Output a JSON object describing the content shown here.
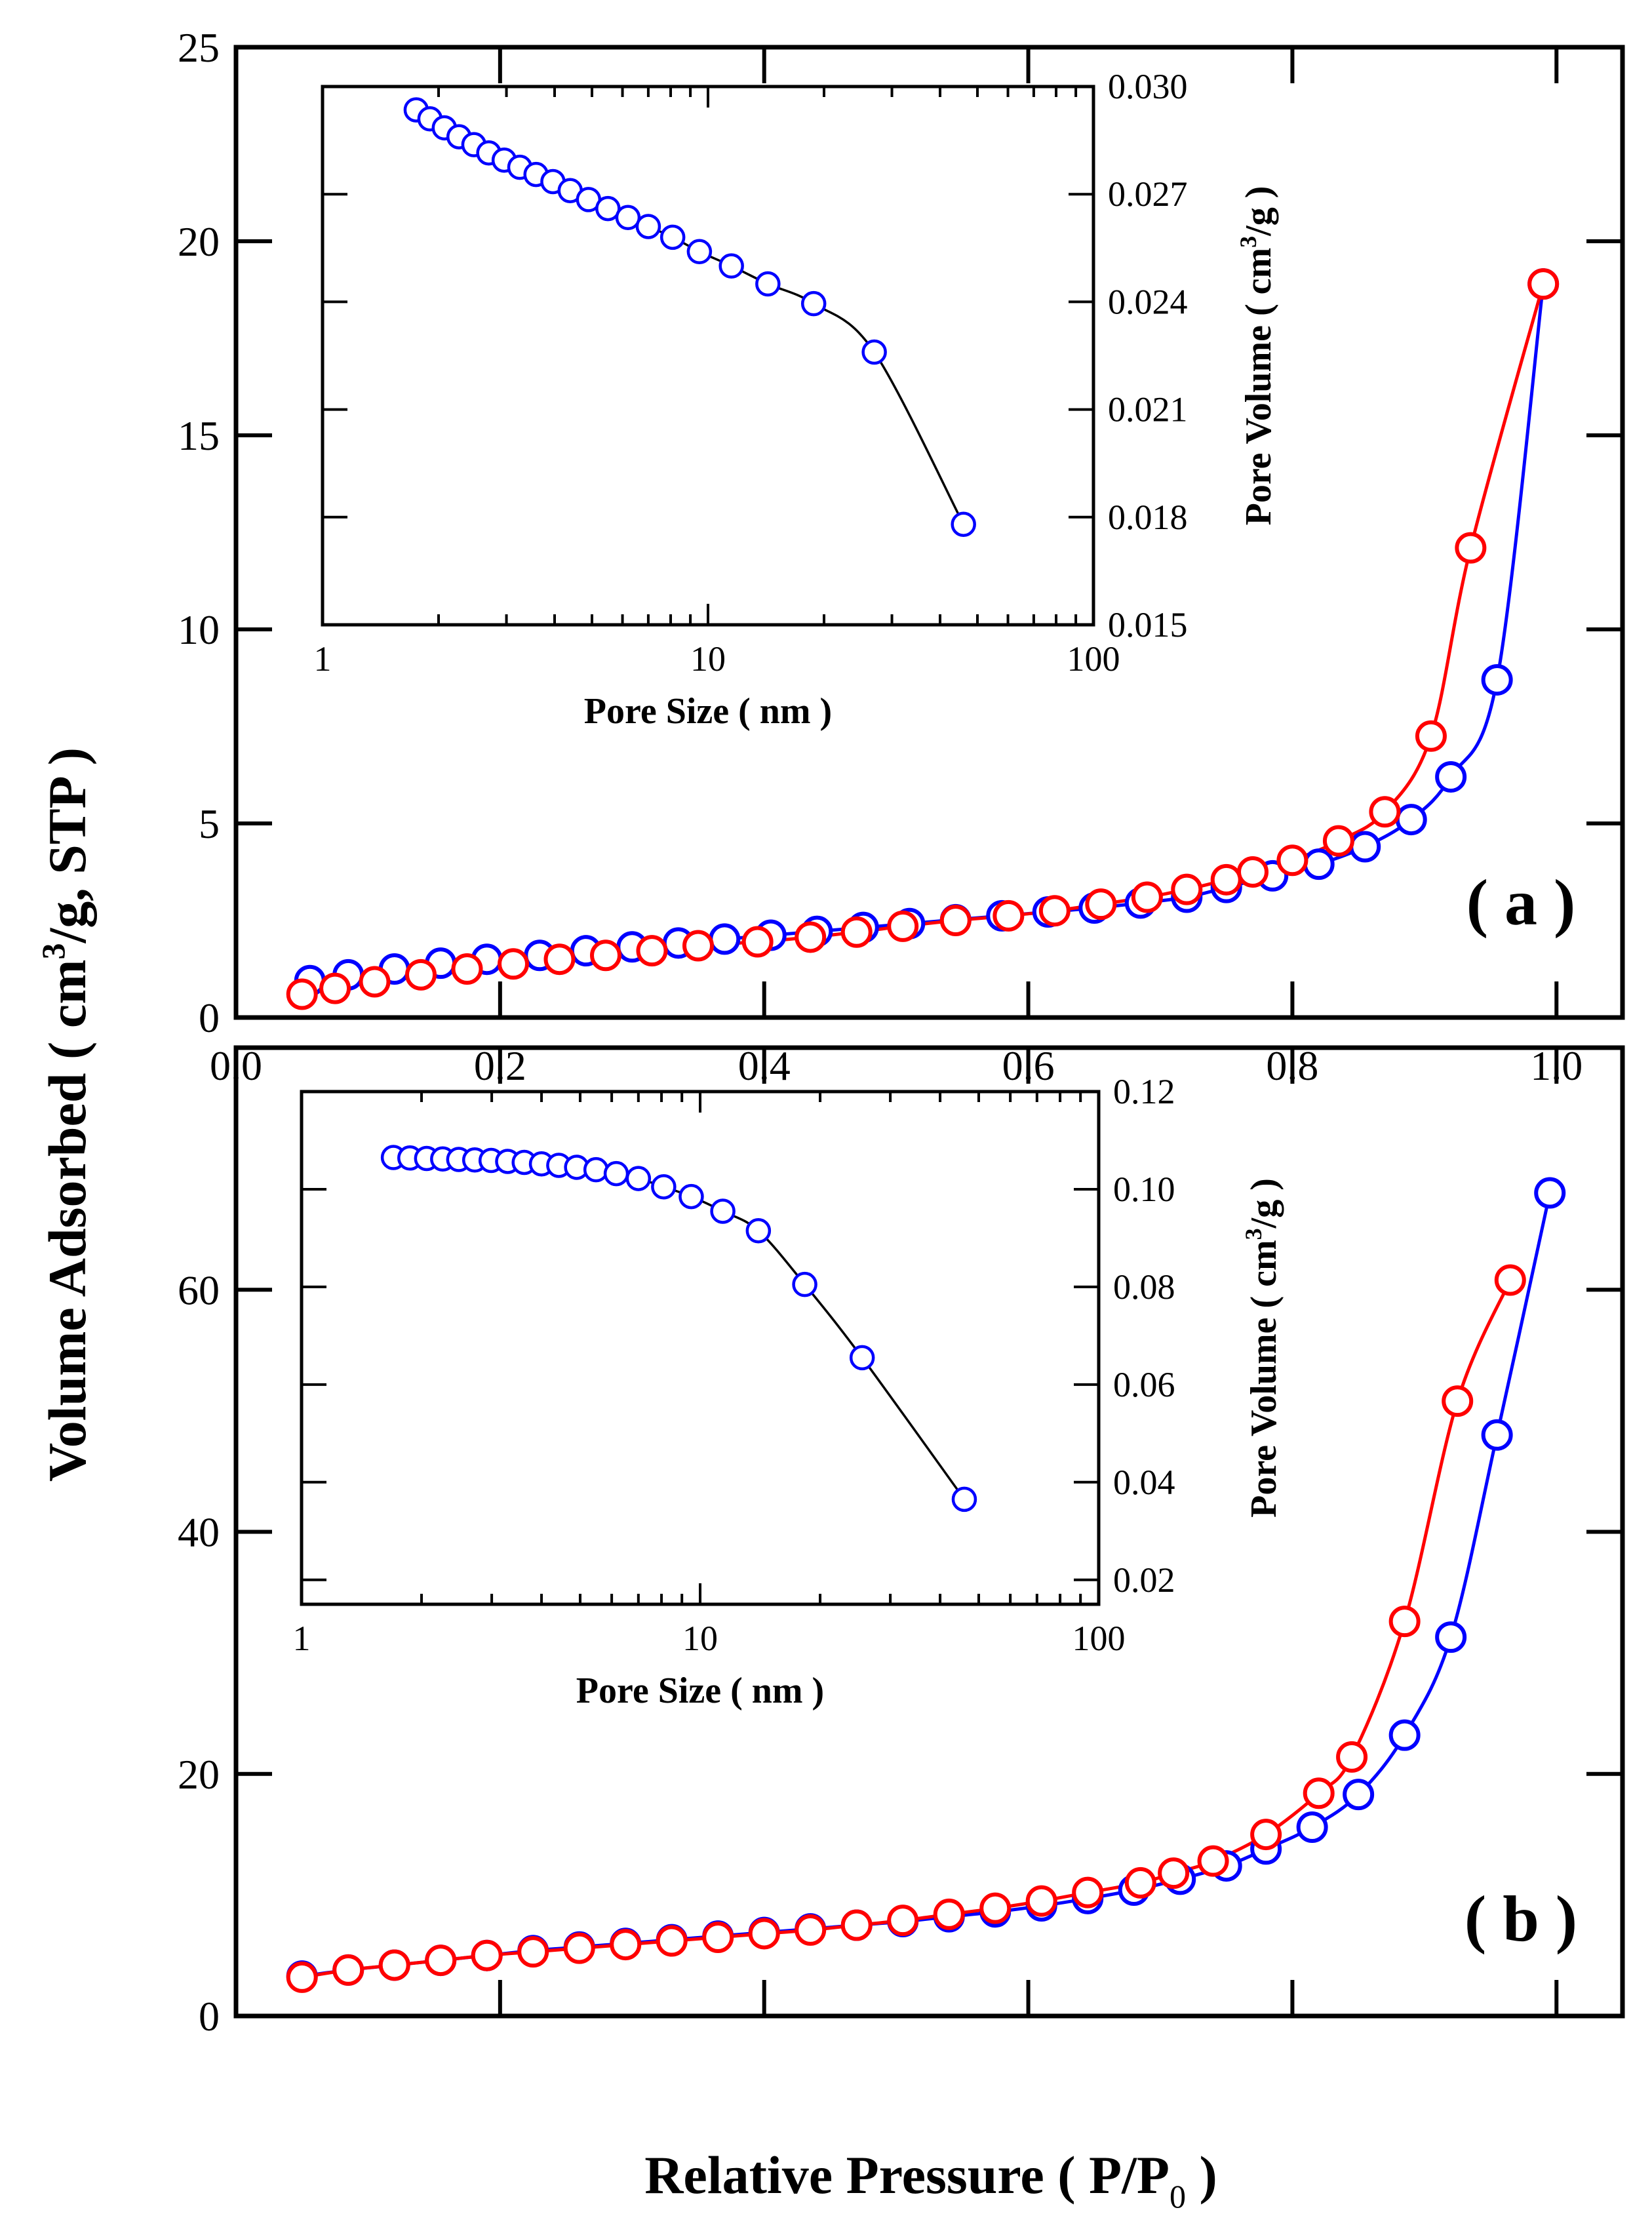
{
  "chart_data": [
    {
      "id": "a",
      "type": "scatter",
      "panel_label": "( a )",
      "xlabel_main": "Relative Pressure ( P/P",
      "xlabel_sub": "0",
      "xlabel_close": " )",
      "ylabel_pre": "Volume Adsorbed ( cm",
      "ylabel_sup": "3",
      "ylabel_post": "/g, STP )",
      "xlim": [
        0.0,
        1.05
      ],
      "ylim": [
        0,
        25
      ],
      "xticks": [
        0.0,
        0.2,
        0.4,
        0.6,
        0.8,
        1.0
      ],
      "xtick_labels": [
        "0.0",
        "0.2",
        "0.4",
        "0.6",
        "0.8",
        "1.0"
      ],
      "yticks": [
        0,
        5,
        10,
        15,
        20,
        25
      ],
      "ytick_labels": [
        "0",
        "5",
        "10",
        "15",
        "20",
        "25"
      ],
      "series": [
        {
          "name": "adsorption",
          "color": "#0000ff",
          "x": [
            0.056,
            0.085,
            0.12,
            0.155,
            0.19,
            0.23,
            0.265,
            0.3,
            0.335,
            0.37,
            0.405,
            0.44,
            0.475,
            0.51,
            0.545,
            0.58,
            0.615,
            0.65,
            0.685,
            0.72,
            0.75,
            0.785,
            0.82,
            0.855,
            0.89,
            0.92,
            0.955,
            0.99
          ],
          "y": [
            0.95,
            1.1,
            1.25,
            1.4,
            1.5,
            1.6,
            1.72,
            1.82,
            1.92,
            2.02,
            2.12,
            2.22,
            2.32,
            2.42,
            2.52,
            2.62,
            2.72,
            2.82,
            2.95,
            3.1,
            3.35,
            3.65,
            3.95,
            4.4,
            5.1,
            6.2,
            8.7,
            18.9
          ]
        },
        {
          "name": "desorption",
          "color": "#ff0000",
          "x": [
            0.05,
            0.075,
            0.105,
            0.14,
            0.175,
            0.21,
            0.245,
            0.28,
            0.315,
            0.35,
            0.395,
            0.435,
            0.47,
            0.505,
            0.545,
            0.585,
            0.62,
            0.655,
            0.69,
            0.72,
            0.75,
            0.77,
            0.8,
            0.835,
            0.87,
            0.905,
            0.935,
            0.99
          ],
          "y": [
            0.6,
            0.75,
            0.92,
            1.1,
            1.25,
            1.38,
            1.5,
            1.6,
            1.72,
            1.85,
            1.95,
            2.07,
            2.2,
            2.35,
            2.5,
            2.62,
            2.75,
            2.92,
            3.1,
            3.3,
            3.55,
            3.75,
            4.05,
            4.55,
            5.3,
            7.25,
            12.1,
            18.9
          ]
        }
      ],
      "inset": {
        "type": "scatter",
        "xscale": "log",
        "xlim": [
          1,
          100
        ],
        "ylim": [
          0.015,
          0.03
        ],
        "yaxis_side": "right",
        "xticks": [
          1,
          10,
          100
        ],
        "xtick_labels": [
          "1",
          "10",
          "100"
        ],
        "yticks": [
          0.015,
          0.018,
          0.021,
          0.024,
          0.027,
          0.03
        ],
        "ytick_labels": [
          "0.015",
          "0.018",
          "0.021",
          "0.024",
          "0.027",
          "0.030"
        ],
        "xlabel": "Pore Size ( nm )",
        "ylabel_pre": "Pore Volume ( cm",
        "ylabel_sup": "3",
        "ylabel_post": "/g )",
        "series": [
          {
            "name": "pore-volume",
            "color": "#0000ff",
            "x": [
              1.75,
              1.9,
              2.07,
              2.26,
              2.47,
              2.7,
              2.96,
              3.25,
              3.58,
              3.96,
              4.39,
              4.9,
              5.5,
              6.2,
              7.0,
              8.1,
              9.5,
              11.5,
              14.3,
              18.8,
              27.0,
              46.0
            ],
            "y": [
              0.02935,
              0.0291,
              0.02885,
              0.0286,
              0.02838,
              0.02815,
              0.02795,
              0.02775,
              0.02755,
              0.02735,
              0.0271,
              0.02685,
              0.0266,
              0.02635,
              0.0261,
              0.0258,
              0.0254,
              0.025,
              0.0245,
              0.02395,
              0.0226,
              0.0178
            ]
          }
        ]
      }
    },
    {
      "id": "b",
      "type": "scatter",
      "panel_label": "( b )",
      "xlim": [
        0.0,
        1.05
      ],
      "ylim": [
        0,
        80
      ],
      "xticks": [
        0.0,
        0.2,
        0.4,
        0.6,
        0.8,
        1.0
      ],
      "yticks": [
        0,
        20,
        40,
        60
      ],
      "ytick_labels": [
        "0",
        "20",
        "40",
        "60"
      ],
      "series": [
        {
          "name": "adsorption",
          "color": "#0000ff",
          "x": [
            0.05,
            0.085,
            0.12,
            0.155,
            0.19,
            0.225,
            0.26,
            0.295,
            0.33,
            0.365,
            0.4,
            0.435,
            0.47,
            0.505,
            0.54,
            0.575,
            0.61,
            0.645,
            0.68,
            0.715,
            0.75,
            0.78,
            0.815,
            0.85,
            0.885,
            0.92,
            0.955,
            0.995
          ],
          "y": [
            3.3,
            3.8,
            4.2,
            4.6,
            5.0,
            5.4,
            5.7,
            6.0,
            6.3,
            6.6,
            6.9,
            7.2,
            7.5,
            7.8,
            8.2,
            8.6,
            9.1,
            9.7,
            10.4,
            11.3,
            12.4,
            13.8,
            15.6,
            18.3,
            23.2,
            31.3,
            48.0,
            68.0
          ]
        },
        {
          "name": "desorption",
          "color": "#ff0000",
          "x": [
            0.05,
            0.085,
            0.12,
            0.155,
            0.19,
            0.225,
            0.26,
            0.295,
            0.33,
            0.365,
            0.4,
            0.435,
            0.47,
            0.505,
            0.54,
            0.575,
            0.61,
            0.645,
            0.685,
            0.71,
            0.74,
            0.78,
            0.82,
            0.845,
            0.885,
            0.925,
            0.965
          ],
          "y": [
            3.2,
            3.8,
            4.2,
            4.6,
            5.0,
            5.3,
            5.6,
            5.9,
            6.2,
            6.5,
            6.8,
            7.1,
            7.5,
            7.9,
            8.4,
            8.9,
            9.5,
            10.2,
            11.0,
            11.8,
            12.8,
            15.0,
            18.4,
            21.4,
            32.6,
            50.8,
            60.8
          ]
        }
      ],
      "inset": {
        "type": "scatter",
        "xscale": "log",
        "xlim": [
          1,
          100
        ],
        "ylim": [
          0.015,
          0.12
        ],
        "yaxis_side": "right",
        "xticks": [
          1,
          10,
          100
        ],
        "xtick_labels": [
          "1",
          "10",
          "100"
        ],
        "yticks": [
          0.02,
          0.04,
          0.06,
          0.08,
          0.1,
          0.12
        ],
        "ytick_labels": [
          "0.02",
          "0.04",
          "0.06",
          "0.08",
          "0.10",
          "0.12"
        ],
        "xlabel": "Pore Size ( nm )",
        "ylabel_pre": "Pore Volume ( cm",
        "ylabel_sup": "3",
        "ylabel_post": "/g )",
        "series": [
          {
            "name": "pore-volume",
            "color": "#0000ff",
            "x": [
              1.7,
              1.87,
              2.06,
              2.26,
              2.48,
              2.72,
              2.99,
              3.29,
              3.62,
              4.0,
              4.42,
              4.9,
              5.48,
              6.16,
              7.0,
              8.1,
              9.5,
              11.4,
              14.0,
              18.3,
              25.5,
              46.0
            ],
            "y": [
              0.1065,
              0.1064,
              0.1063,
              0.1062,
              0.1061,
              0.106,
              0.1059,
              0.1057,
              0.1055,
              0.1052,
              0.1049,
              0.1045,
              0.104,
              0.1032,
              0.1022,
              0.1005,
              0.0985,
              0.0955,
              0.0915,
              0.0805,
              0.0655,
              0.0365
            ]
          }
        ]
      }
    }
  ]
}
